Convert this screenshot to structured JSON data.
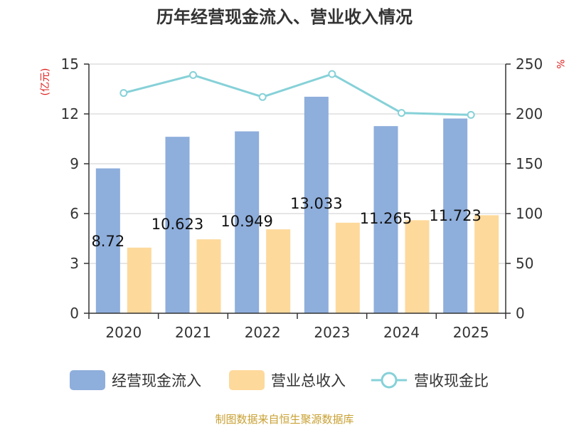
{
  "chart_data": {
    "type": "bar",
    "title": "历年经营现金流入、营业收入情况",
    "ylabel_left": "(亿元)",
    "ylabel_right": "%",
    "categories": [
      "2020",
      "2021",
      "2022",
      "2023",
      "2024",
      "2025"
    ],
    "y_left": {
      "min": 0,
      "max": 15,
      "ticks": [
        "0",
        "3",
        "6",
        "9",
        "12",
        "15"
      ]
    },
    "y_right": {
      "min": 0,
      "max": 250,
      "ticks": [
        "0",
        "50",
        "100",
        "150",
        "200",
        "250"
      ]
    },
    "grid": true,
    "legend_position": "bottom",
    "series": [
      {
        "name": "经营现金流入",
        "type": "bar",
        "axis": "left",
        "color": "#8eaedc",
        "values": [
          8.72,
          10.623,
          10.949,
          13.033,
          11.265,
          11.723
        ],
        "labels": [
          "8.72",
          "10.623",
          "10.949",
          "13.033",
          "11.265",
          "11.723"
        ]
      },
      {
        "name": "营业总收入",
        "type": "bar",
        "axis": "left",
        "color": "#fdd99b",
        "values": [
          3.95,
          4.45,
          5.05,
          5.45,
          5.6,
          5.9
        ]
      },
      {
        "name": "营收现金比",
        "type": "line",
        "axis": "right",
        "color": "#86d1d8",
        "values": [
          221,
          239,
          217,
          240,
          201,
          199
        ]
      }
    ]
  },
  "footer": {
    "source": "制图数据来自恒生聚源数据库"
  },
  "colors": {
    "title": "#333333",
    "axis_unit": "#e02020",
    "source": "#c8a032"
  }
}
